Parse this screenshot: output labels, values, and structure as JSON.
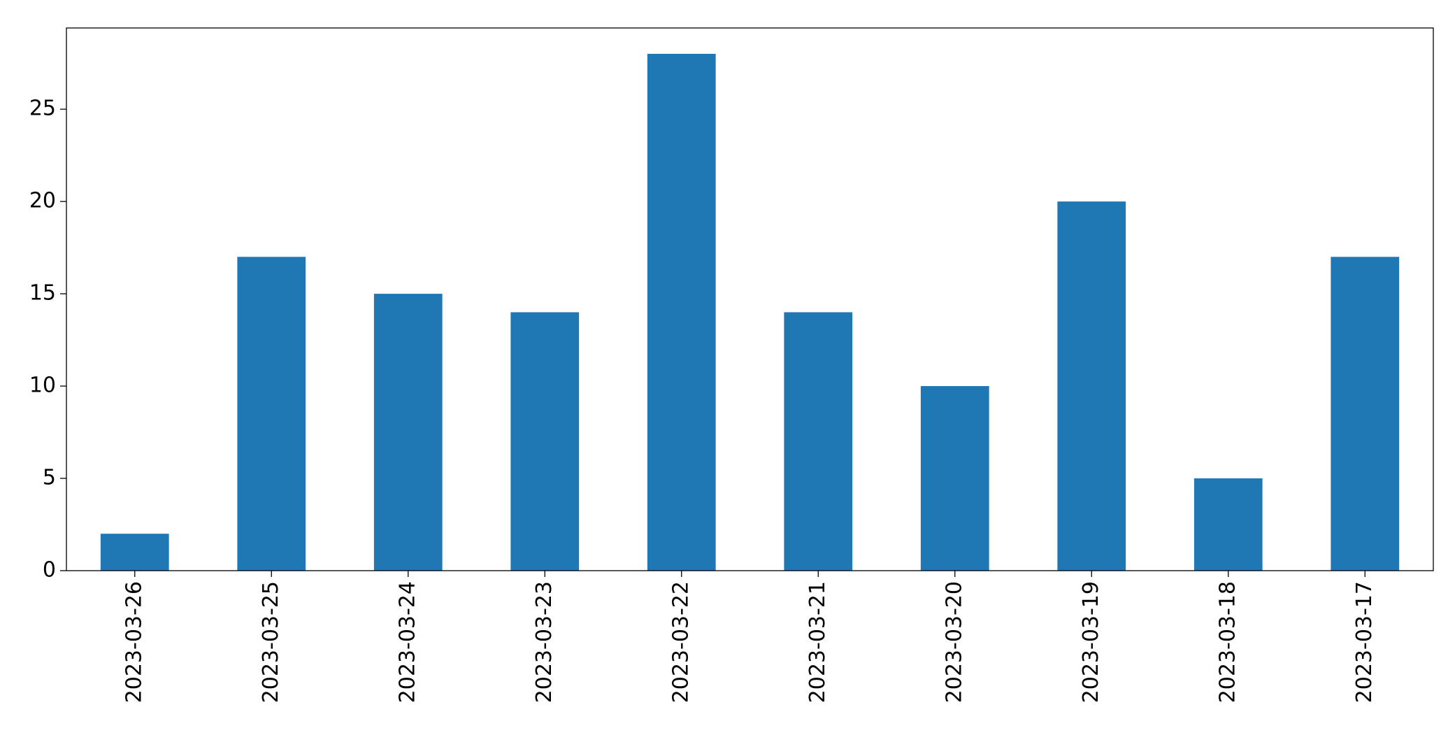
{
  "chart_data": {
    "type": "bar",
    "categories": [
      "2023-03-26",
      "2023-03-25",
      "2023-03-24",
      "2023-03-23",
      "2023-03-22",
      "2023-03-21",
      "2023-03-20",
      "2023-03-19",
      "2023-03-18",
      "2023-03-17"
    ],
    "values": [
      2,
      17,
      15,
      14,
      28,
      14,
      10,
      20,
      5,
      17
    ],
    "color": "#1f77b4",
    "ylim": [
      0,
      29.4
    ],
    "yticks": [
      0,
      5,
      10,
      15,
      20,
      25
    ],
    "grid": false
  }
}
